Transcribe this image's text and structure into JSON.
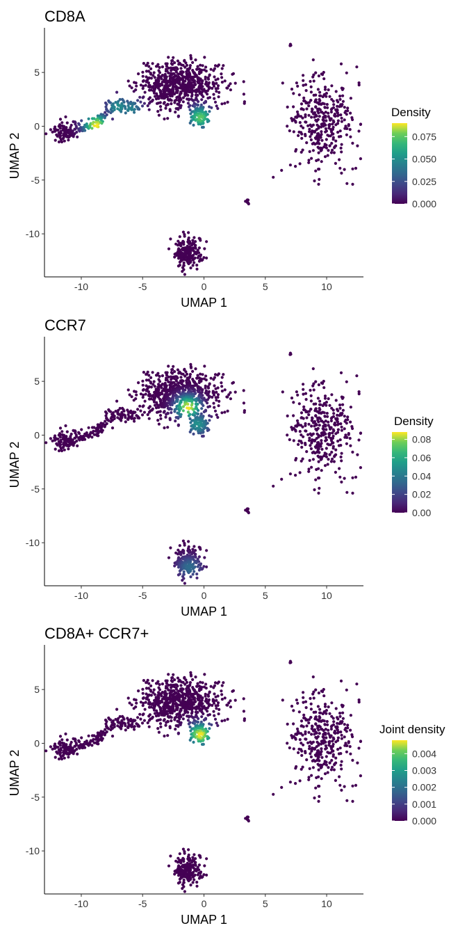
{
  "chart_data": [
    {
      "type": "scatter",
      "title": "CD8A",
      "xlabel": "UMAP 1",
      "ylabel": "UMAP 2",
      "xlim": [
        -13,
        13
      ],
      "ylim": [
        -14,
        8.5
      ],
      "x_ticks": [
        -10,
        -5,
        0,
        5,
        10
      ],
      "y_ticks": [
        -10,
        -5,
        0,
        5
      ],
      "grid": false,
      "legend": {
        "title": "Density",
        "position": "right",
        "min": 0,
        "max": 0.09,
        "ticks": [
          "0.000",
          "0.025",
          "0.050",
          "0.075"
        ]
      },
      "hotspots": [
        {
          "x": -8.8,
          "y": 0.1,
          "density": 0.09
        },
        {
          "x": -0.3,
          "y": 0.8,
          "density": 0.075
        },
        {
          "x": -7.0,
          "y": 1.8,
          "density": 0.05
        },
        {
          "x": -6.0,
          "y": 1.6,
          "density": 0.045
        }
      ]
    },
    {
      "type": "scatter",
      "title": "CCR7",
      "xlabel": "UMAP 1",
      "ylabel": "UMAP 2",
      "xlim": [
        -13,
        13
      ],
      "ylim": [
        -14,
        8.5
      ],
      "x_ticks": [
        -10,
        -5,
        0,
        5,
        10
      ],
      "y_ticks": [
        -10,
        -5,
        0,
        5
      ],
      "grid": false,
      "legend": {
        "title": "Density",
        "position": "right",
        "min": 0,
        "max": 0.088,
        "ticks": [
          "0.00",
          "0.02",
          "0.04",
          "0.06",
          "0.08"
        ]
      },
      "hotspots": [
        {
          "x": -1.3,
          "y": 2.6,
          "density": 0.088
        },
        {
          "x": -0.5,
          "y": 1.0,
          "density": 0.05
        },
        {
          "x": -1.2,
          "y": -12.3,
          "density": 0.035
        }
      ]
    },
    {
      "type": "scatter",
      "title": "CD8A+ CCR7+",
      "xlabel": "UMAP 1",
      "ylabel": "UMAP 2",
      "xlim": [
        -13,
        13
      ],
      "ylim": [
        -14,
        8.5
      ],
      "x_ticks": [
        -10,
        -5,
        0,
        5,
        10
      ],
      "y_ticks": [
        -10,
        -5,
        0,
        5
      ],
      "grid": false,
      "legend": {
        "title": "Joint density",
        "position": "right",
        "min": 0,
        "max": 0.0048,
        "ticks": [
          "0.000",
          "0.001",
          "0.002",
          "0.003",
          "0.004"
        ]
      },
      "hotspots": [
        {
          "x": -0.3,
          "y": 0.8,
          "density": 0.0048
        }
      ]
    }
  ],
  "clusters": [
    {
      "cx": -2.0,
      "cy": 3.8,
      "sx": 1.7,
      "sy": 1.1,
      "n": 650
    },
    {
      "cx": -0.3,
      "cy": 1.0,
      "sx": 0.45,
      "sy": 0.55,
      "n": 90
    },
    {
      "cx": -11.3,
      "cy": -0.5,
      "sx": 0.55,
      "sy": 0.45,
      "n": 80
    },
    {
      "cx": -1.3,
      "cy": -11.8,
      "sx": 0.55,
      "sy": 0.8,
      "n": 200
    },
    {
      "cx": 9.6,
      "cy": 0.4,
      "sx": 1.4,
      "sy": 2.1,
      "n": 360
    },
    {
      "cx": 3.5,
      "cy": -7.0,
      "sx": 0.08,
      "sy": 0.15,
      "n": 8
    },
    {
      "cx": 7.0,
      "cy": 7.6,
      "sx": 0.06,
      "sy": 0.06,
      "n": 3
    }
  ],
  "bridge": [
    [
      -11.0,
      -0.4
    ],
    [
      -9.5,
      0.0
    ],
    [
      -8.5,
      0.6
    ],
    [
      -7.5,
      2.0
    ],
    [
      -6.5,
      1.8
    ],
    [
      -5.5,
      1.8
    ]
  ]
}
